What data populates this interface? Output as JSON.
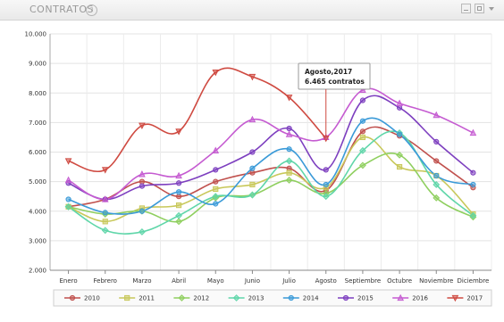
{
  "window": {
    "title": "CONTRATOS",
    "help_icon": "question-icon",
    "controls": [
      "minimize-icon",
      "maximize-icon",
      "dropdown-caret-icon"
    ]
  },
  "tooltip": {
    "title": "Agosto,2017",
    "value": "6.465 contratos"
  },
  "chart_data": {
    "type": "line",
    "title": "",
    "xlabel": "",
    "ylabel": "",
    "ylim": [
      2000,
      10000
    ],
    "yticks": [
      2000,
      3000,
      4000,
      5000,
      6000,
      7000,
      8000,
      9000,
      10000
    ],
    "ytick_labels": [
      "2.000",
      "3.000",
      "4.000",
      "5.000",
      "6.000",
      "7.000",
      "8.000",
      "9.000",
      "10.000"
    ],
    "grid": true,
    "legend_position": "bottom",
    "categories": [
      "Enero",
      "Febrero",
      "Marzo",
      "Abril",
      "Mayo",
      "Junio",
      "Julio",
      "Agosto",
      "Septiembre",
      "Octubre",
      "Noviembre",
      "Diciembre"
    ],
    "series": [
      {
        "name": "2010",
        "color": "#c0504d",
        "marker": "circle",
        "values": [
          4150,
          4400,
          5000,
          4500,
          5000,
          5300,
          5450,
          4700,
          6700,
          6550,
          5700,
          4800
        ]
      },
      {
        "name": "2011",
        "color": "#c8c85a",
        "marker": "square",
        "values": [
          4150,
          3650,
          4100,
          4200,
          4750,
          4900,
          5300,
          4800,
          6500,
          5500,
          5200,
          3900
        ]
      },
      {
        "name": "2012",
        "color": "#8fcf5f",
        "marker": "diamond",
        "values": [
          4150,
          3900,
          4000,
          3650,
          4450,
          4550,
          5050,
          4600,
          5550,
          5900,
          4450,
          3800
        ]
      },
      {
        "name": "2013",
        "color": "#5fd6a9",
        "marker": "diamond",
        "values": [
          4150,
          3350,
          3300,
          3850,
          4500,
          4550,
          5700,
          4500,
          6050,
          6650,
          4900,
          3850
        ]
      },
      {
        "name": "2014",
        "color": "#3a9ad8",
        "marker": "circle",
        "values": [
          4400,
          3950,
          4000,
          4650,
          4250,
          5450,
          6100,
          4900,
          7050,
          6600,
          5200,
          4900
        ]
      },
      {
        "name": "2015",
        "color": "#7d3fbf",
        "marker": "circle",
        "values": [
          4950,
          4400,
          4850,
          4950,
          5400,
          6000,
          6800,
          5400,
          7750,
          7500,
          6350,
          5300
        ]
      },
      {
        "name": "2016",
        "color": "#c55bd1",
        "marker": "triangle",
        "values": [
          5050,
          4400,
          5250,
          5200,
          6050,
          7100,
          6600,
          6500,
          8100,
          7650,
          7250,
          6650
        ]
      },
      {
        "name": "2017",
        "color": "#cf4a41",
        "marker": "triangle-down",
        "values": [
          5700,
          5400,
          6900,
          6700,
          8700,
          8550,
          7850,
          6465,
          null,
          null,
          null,
          null
        ]
      }
    ]
  }
}
